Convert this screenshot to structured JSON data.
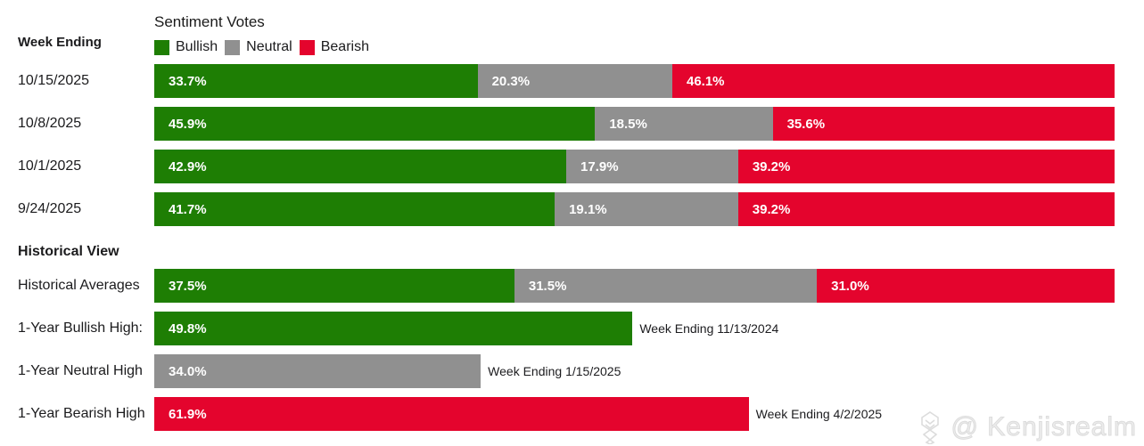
{
  "header": {
    "week_ending_label": "Week Ending",
    "chart_title": "Sentiment Votes",
    "historical_view_label": "Historical View"
  },
  "legend": {
    "items": [
      {
        "label": "Bullish",
        "color": "#1e7e04"
      },
      {
        "label": "Neutral",
        "color": "#909090"
      },
      {
        "label": "Bearish",
        "color": "#e4042d"
      }
    ]
  },
  "weekly_rows": [
    {
      "label": "10/15/2025",
      "segments": [
        {
          "name": "bullish",
          "value": 33.7,
          "text": "33.7%"
        },
        {
          "name": "neutral",
          "value": 20.3,
          "text": "20.3%"
        },
        {
          "name": "bearish",
          "value": 46.1,
          "text": "46.1%"
        }
      ]
    },
    {
      "label": "10/8/2025",
      "segments": [
        {
          "name": "bullish",
          "value": 45.9,
          "text": "45.9%"
        },
        {
          "name": "neutral",
          "value": 18.5,
          "text": "18.5%"
        },
        {
          "name": "bearish",
          "value": 35.6,
          "text": "35.6%"
        }
      ]
    },
    {
      "label": "10/1/2025",
      "segments": [
        {
          "name": "bullish",
          "value": 42.9,
          "text": "42.9%"
        },
        {
          "name": "neutral",
          "value": 17.9,
          "text": "17.9%"
        },
        {
          "name": "bearish",
          "value": 39.2,
          "text": "39.2%"
        }
      ]
    },
    {
      "label": "9/24/2025",
      "segments": [
        {
          "name": "bullish",
          "value": 41.7,
          "text": "41.7%"
        },
        {
          "name": "neutral",
          "value": 19.1,
          "text": "19.1%"
        },
        {
          "name": "bearish",
          "value": 39.2,
          "text": "39.2%"
        }
      ]
    }
  ],
  "historical_rows": [
    {
      "label": "Historical Averages",
      "segments": [
        {
          "name": "bullish",
          "value": 37.5,
          "text": "37.5%"
        },
        {
          "name": "neutral",
          "value": 31.5,
          "text": "31.5%"
        },
        {
          "name": "bearish",
          "value": 31.0,
          "text": "31.0%"
        }
      ]
    },
    {
      "label": "1-Year Bullish High:",
      "annotation": "Week Ending 11/13/2024",
      "segments": [
        {
          "name": "bullish",
          "value": 49.8,
          "text": "49.8%"
        }
      ]
    },
    {
      "label": "1-Year Neutral High",
      "annotation": "Week Ending 1/15/2025",
      "segments": [
        {
          "name": "neutral",
          "value": 34.0,
          "text": "34.0%"
        }
      ]
    },
    {
      "label": "1-Year Bearish High",
      "annotation": "Week Ending 4/2/2025",
      "segments": [
        {
          "name": "bearish",
          "value": 61.9,
          "text": "61.9%"
        }
      ]
    }
  ],
  "watermark": {
    "handle": "@ Kenjisrealm"
  },
  "colors": {
    "bullish": "#1e7e04",
    "neutral": "#909090",
    "bearish": "#e4042d",
    "value_label": "#ffffff",
    "text": "#1b1b1d",
    "watermark": "#dcdcdc",
    "background": "#ffffff"
  },
  "chart_data": {
    "type": "bar",
    "orientation": "horizontal_stacked",
    "title": "Sentiment Votes",
    "series": [
      "Bullish",
      "Neutral",
      "Bearish"
    ],
    "unit": "%",
    "xlim": [
      0,
      100
    ],
    "legend_position": "top",
    "grid": false,
    "weekly": {
      "categories": [
        "10/15/2025",
        "10/8/2025",
        "10/1/2025",
        "9/24/2025"
      ],
      "bullish": [
        33.7,
        45.9,
        42.9,
        41.7
      ],
      "neutral": [
        20.3,
        18.5,
        17.9,
        19.1
      ],
      "bearish": [
        46.1,
        35.6,
        39.2,
        39.2
      ]
    },
    "historical": {
      "averages": {
        "bullish": 37.5,
        "neutral": 31.5,
        "bearish": 31.0
      },
      "one_year_bullish_high": {
        "value": 49.8,
        "week_ending": "11/13/2024"
      },
      "one_year_neutral_high": {
        "value": 34.0,
        "week_ending": "1/15/2025"
      },
      "one_year_bearish_high": {
        "value": 61.9,
        "week_ending": "4/2/2025"
      }
    }
  }
}
